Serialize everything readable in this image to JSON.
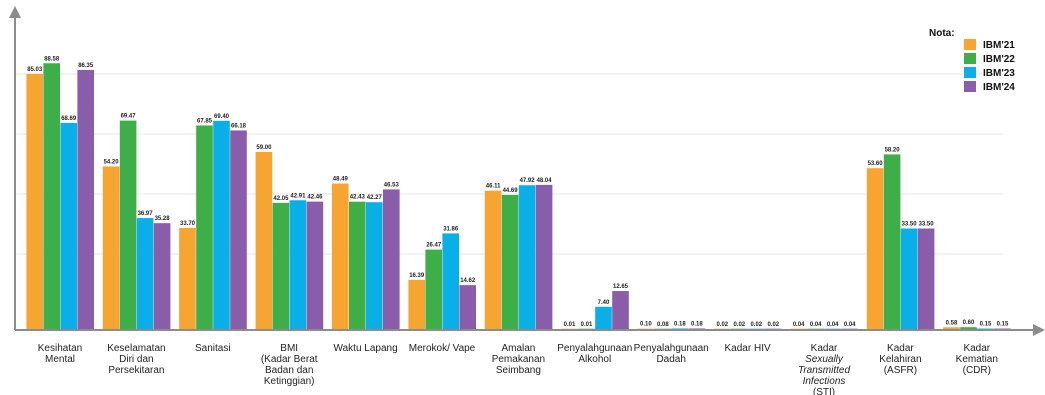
{
  "chart_data": {
    "type": "bar",
    "title": "",
    "xlabel": "",
    "ylabel": "",
    "ylim": [
      0,
      100
    ],
    "grid": true,
    "legend_placement": "top-right",
    "legend_title": "Nota:",
    "categories": [
      {
        "lines": [
          "Kesihatan",
          "Mental"
        ],
        "italic": [
          false,
          false
        ]
      },
      {
        "lines": [
          "Keselamatan",
          "Diri dan",
          "Persekitaran"
        ],
        "italic": [
          false,
          false,
          false
        ]
      },
      {
        "lines": [
          "Sanitasi"
        ],
        "italic": [
          false
        ]
      },
      {
        "lines": [
          "BMI",
          "(Kadar Berat",
          "Badan dan",
          "Ketinggian)"
        ],
        "italic": [
          false,
          false,
          false,
          false
        ]
      },
      {
        "lines": [
          "Waktu Lapang"
        ],
        "italic": [
          false
        ]
      },
      {
        "lines": [
          "Merokok/ Vape"
        ],
        "italic": [
          false
        ]
      },
      {
        "lines": [
          "Amalan",
          "Pemakanan",
          "Seimbang"
        ],
        "italic": [
          false,
          false,
          false
        ]
      },
      {
        "lines": [
          "Penyalahgunaan",
          "Alkohol"
        ],
        "italic": [
          false,
          false
        ]
      },
      {
        "lines": [
          "Penyalahgunaan",
          "Dadah"
        ],
        "italic": [
          false,
          false
        ]
      },
      {
        "lines": [
          "Kadar HIV"
        ],
        "italic": [
          false
        ]
      },
      {
        "lines": [
          "Kadar",
          "Sexually",
          "Transmitted",
          "Infections",
          "(STI)"
        ],
        "italic": [
          false,
          true,
          true,
          true,
          false
        ]
      },
      {
        "lines": [
          "Kadar",
          "Kelahiran",
          "(ASFR)"
        ],
        "italic": [
          false,
          false,
          false
        ]
      },
      {
        "lines": [
          "Kadar",
          "Kematian",
          "(CDR)"
        ],
        "italic": [
          false,
          false,
          false
        ]
      }
    ],
    "series": [
      {
        "name": "IBM'21",
        "color": "#F7A531",
        "values": [
          85.03,
          54.2,
          33.7,
          59.0,
          48.49,
          16.39,
          46.11,
          0.01,
          0.1,
          0.02,
          0.04,
          53.6,
          0.58
        ],
        "labels": [
          "85.03",
          "54.20",
          "33.70",
          "59.00",
          "48.49",
          "16.39",
          "46.11",
          "0.01",
          "0.10",
          "0.02",
          "0.04",
          "53.60",
          "0.58"
        ]
      },
      {
        "name": "IBM'22",
        "color": "#3DAE48",
        "values": [
          88.58,
          69.47,
          67.85,
          42.05,
          42.43,
          26.47,
          44.69,
          0.01,
          0.08,
          0.02,
          0.04,
          58.2,
          0.6
        ],
        "labels": [
          "88.58",
          "69.47",
          "67.85",
          "42.05",
          "42.43",
          "26.47",
          "44.69",
          "0.01",
          "0.08",
          "0.02",
          "0.04",
          "58.20",
          "0.60"
        ]
      },
      {
        "name": "IBM'23",
        "color": "#0AAFE8",
        "values": [
          68.69,
          36.97,
          69.4,
          42.91,
          42.27,
          31.86,
          47.92,
          7.4,
          0.18,
          0.02,
          0.04,
          33.5,
          0.15
        ],
        "labels": [
          "68.69",
          "36.97",
          "69.40",
          "42.91",
          "42.27",
          "31.86",
          "47.92",
          "7.40",
          "0.18",
          "0.02",
          "0.04",
          "33.50",
          "0.15"
        ]
      },
      {
        "name": "IBM'24",
        "color": "#8A5DAA",
        "values": [
          86.35,
          35.28,
          66.18,
          42.46,
          46.53,
          14.62,
          48.04,
          12.65,
          0.18,
          0.02,
          0.04,
          33.5,
          0.15
        ],
        "labels": [
          "86.35",
          "35.28",
          "66.18",
          "42.46",
          "46.53",
          "14.62",
          "48.04",
          "12.65",
          "0.18",
          "0.02",
          "0.04",
          "33.50",
          "0.15"
        ]
      }
    ]
  }
}
